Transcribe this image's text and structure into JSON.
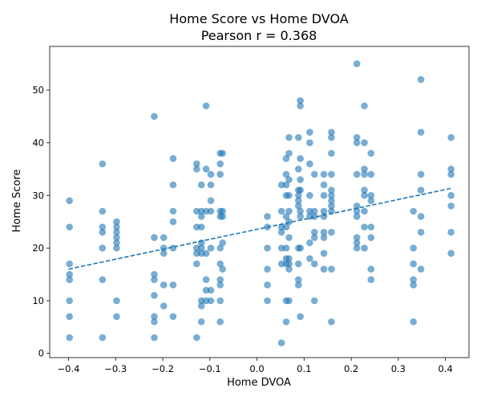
{
  "chart_data": {
    "type": "scatter",
    "title": "Home Score vs Home DVOA",
    "subtitle": "Pearson r = 0.368",
    "xlabel": "Home DVOA",
    "ylabel": "Home Score",
    "xlim": [
      -0.44,
      0.45
    ],
    "ylim": [
      -0.8,
      58.3
    ],
    "xticks": [
      -0.4,
      -0.3,
      -0.2,
      -0.1,
      0.0,
      0.1,
      0.2,
      0.3,
      0.4
    ],
    "xtick_labels": [
      "−0.4",
      "−0.3",
      "−0.2",
      "−0.1",
      "0.0",
      "0.1",
      "0.2",
      "0.3",
      "0.4"
    ],
    "yticks": [
      0,
      10,
      20,
      30,
      40,
      50
    ],
    "ytick_labels": [
      "0",
      "10",
      "20",
      "30",
      "40",
      "50"
    ],
    "grid": false,
    "point_color": "#1f77b4",
    "trend_color": "#1f77b4",
    "trendline": {
      "x": [
        -0.4,
        0.415
      ],
      "y": [
        16.0,
        31.4
      ],
      "style": "dashed"
    },
    "points": [
      [
        -0.398,
        29
      ],
      [
        -0.398,
        24
      ],
      [
        -0.398,
        17
      ],
      [
        -0.398,
        15
      ],
      [
        -0.398,
        14
      ],
      [
        -0.398,
        10
      ],
      [
        -0.398,
        7
      ],
      [
        -0.398,
        3
      ],
      [
        -0.328,
        36
      ],
      [
        -0.328,
        27
      ],
      [
        -0.328,
        24
      ],
      [
        -0.328,
        23
      ],
      [
        -0.328,
        20
      ],
      [
        -0.328,
        14
      ],
      [
        -0.328,
        3
      ],
      [
        -0.298,
        25
      ],
      [
        -0.298,
        24
      ],
      [
        -0.298,
        23
      ],
      [
        -0.298,
        22
      ],
      [
        -0.298,
        21
      ],
      [
        -0.298,
        20
      ],
      [
        -0.298,
        10
      ],
      [
        -0.298,
        7
      ],
      [
        -0.218,
        45
      ],
      [
        -0.218,
        22
      ],
      [
        -0.218,
        15
      ],
      [
        -0.218,
        14
      ],
      [
        -0.218,
        11
      ],
      [
        -0.218,
        7
      ],
      [
        -0.218,
        6
      ],
      [
        -0.218,
        3
      ],
      [
        -0.198,
        22
      ],
      [
        -0.198,
        20
      ],
      [
        -0.198,
        19
      ],
      [
        -0.198,
        13
      ],
      [
        -0.198,
        9
      ],
      [
        -0.178,
        37
      ],
      [
        -0.178,
        32
      ],
      [
        -0.178,
        27
      ],
      [
        -0.178,
        25
      ],
      [
        -0.178,
        20
      ],
      [
        -0.178,
        13
      ],
      [
        -0.178,
        7
      ],
      [
        -0.128,
        36
      ],
      [
        -0.128,
        35
      ],
      [
        -0.128,
        27
      ],
      [
        -0.128,
        24
      ],
      [
        -0.128,
        20
      ],
      [
        -0.128,
        19
      ],
      [
        -0.128,
        17
      ],
      [
        -0.128,
        3
      ],
      [
        -0.118,
        27
      ],
      [
        -0.118,
        26
      ],
      [
        -0.118,
        24
      ],
      [
        -0.118,
        21
      ],
      [
        -0.118,
        20
      ],
      [
        -0.118,
        19
      ],
      [
        -0.118,
        10
      ],
      [
        -0.118,
        9
      ],
      [
        -0.118,
        6
      ],
      [
        -0.118,
        32
      ],
      [
        -0.108,
        47
      ],
      [
        -0.108,
        35
      ],
      [
        -0.108,
        27
      ],
      [
        -0.108,
        19
      ],
      [
        -0.108,
        14
      ],
      [
        -0.108,
        12
      ],
      [
        -0.108,
        10
      ],
      [
        -0.098,
        34
      ],
      [
        -0.098,
        32
      ],
      [
        -0.098,
        29
      ],
      [
        -0.098,
        27
      ],
      [
        -0.098,
        20
      ],
      [
        -0.098,
        12
      ],
      [
        -0.098,
        10
      ],
      [
        -0.078,
        38
      ],
      [
        -0.078,
        36
      ],
      [
        -0.078,
        34
      ],
      [
        -0.078,
        27
      ],
      [
        -0.078,
        26
      ],
      [
        -0.078,
        20
      ],
      [
        -0.078,
        17
      ],
      [
        -0.078,
        14
      ],
      [
        -0.078,
        13
      ],
      [
        -0.078,
        10
      ],
      [
        -0.078,
        6
      ],
      [
        -0.073,
        38
      ],
      [
        -0.073,
        27
      ],
      [
        -0.073,
        26
      ],
      [
        -0.073,
        21
      ],
      [
        -0.073,
        16
      ],
      [
        0.022,
        26
      ],
      [
        0.022,
        24
      ],
      [
        0.022,
        20
      ],
      [
        0.022,
        16
      ],
      [
        0.022,
        13
      ],
      [
        0.022,
        10
      ],
      [
        0.052,
        32
      ],
      [
        0.052,
        27
      ],
      [
        0.052,
        24
      ],
      [
        0.052,
        23
      ],
      [
        0.052,
        20
      ],
      [
        0.052,
        17
      ],
      [
        0.052,
        2
      ],
      [
        0.062,
        37
      ],
      [
        0.062,
        34
      ],
      [
        0.062,
        32
      ],
      [
        0.062,
        30
      ],
      [
        0.062,
        26
      ],
      [
        0.062,
        24
      ],
      [
        0.062,
        20
      ],
      [
        0.062,
        18
      ],
      [
        0.062,
        17
      ],
      [
        0.062,
        10
      ],
      [
        0.062,
        6
      ],
      [
        0.068,
        41
      ],
      [
        0.068,
        38
      ],
      [
        0.068,
        33
      ],
      [
        0.068,
        30
      ],
      [
        0.068,
        27
      ],
      [
        0.068,
        25
      ],
      [
        0.068,
        22
      ],
      [
        0.068,
        18
      ],
      [
        0.068,
        17
      ],
      [
        0.068,
        16
      ],
      [
        0.068,
        10
      ],
      [
        0.088,
        41
      ],
      [
        0.088,
        35
      ],
      [
        0.088,
        31
      ],
      [
        0.088,
        30
      ],
      [
        0.088,
        29
      ],
      [
        0.088,
        28
      ],
      [
        0.088,
        20
      ],
      [
        0.088,
        17
      ],
      [
        0.088,
        14
      ],
      [
        0.088,
        13
      ],
      [
        0.092,
        47
      ],
      [
        0.092,
        48
      ],
      [
        0.092,
        37
      ],
      [
        0.092,
        33
      ],
      [
        0.092,
        31
      ],
      [
        0.092,
        27
      ],
      [
        0.092,
        26
      ],
      [
        0.092,
        20
      ],
      [
        0.092,
        7
      ],
      [
        0.112,
        42
      ],
      [
        0.112,
        40
      ],
      [
        0.112,
        36
      ],
      [
        0.112,
        30
      ],
      [
        0.112,
        27
      ],
      [
        0.112,
        26
      ],
      [
        0.112,
        21
      ],
      [
        0.112,
        18
      ],
      [
        0.122,
        34
      ],
      [
        0.122,
        27
      ],
      [
        0.122,
        26
      ],
      [
        0.122,
        23
      ],
      [
        0.122,
        22
      ],
      [
        0.122,
        17
      ],
      [
        0.122,
        10
      ],
      [
        0.142,
        34
      ],
      [
        0.142,
        32
      ],
      [
        0.142,
        30
      ],
      [
        0.142,
        27
      ],
      [
        0.142,
        26
      ],
      [
        0.142,
        23
      ],
      [
        0.142,
        22
      ],
      [
        0.142,
        19
      ],
      [
        0.142,
        16
      ],
      [
        0.158,
        42
      ],
      [
        0.158,
        41
      ],
      [
        0.158,
        38
      ],
      [
        0.158,
        34
      ],
      [
        0.158,
        31
      ],
      [
        0.158,
        30
      ],
      [
        0.158,
        29
      ],
      [
        0.158,
        28
      ],
      [
        0.158,
        27
      ],
      [
        0.158,
        23
      ],
      [
        0.158,
        16
      ],
      [
        0.158,
        6
      ],
      [
        0.212,
        55
      ],
      [
        0.212,
        41
      ],
      [
        0.212,
        40
      ],
      [
        0.212,
        34
      ],
      [
        0.212,
        28
      ],
      [
        0.212,
        27
      ],
      [
        0.212,
        26
      ],
      [
        0.212,
        22
      ],
      [
        0.212,
        21
      ],
      [
        0.212,
        20
      ],
      [
        0.228,
        47
      ],
      [
        0.228,
        40
      ],
      [
        0.228,
        35
      ],
      [
        0.228,
        34
      ],
      [
        0.228,
        31
      ],
      [
        0.228,
        30
      ],
      [
        0.228,
        27
      ],
      [
        0.228,
        24
      ],
      [
        0.228,
        20
      ],
      [
        0.242,
        38
      ],
      [
        0.242,
        34
      ],
      [
        0.242,
        30
      ],
      [
        0.242,
        29
      ],
      [
        0.242,
        24
      ],
      [
        0.242,
        22
      ],
      [
        0.242,
        16
      ],
      [
        0.242,
        14
      ],
      [
        0.332,
        27
      ],
      [
        0.332,
        20
      ],
      [
        0.332,
        17
      ],
      [
        0.332,
        14
      ],
      [
        0.332,
        13
      ],
      [
        0.332,
        6
      ],
      [
        0.348,
        52
      ],
      [
        0.348,
        42
      ],
      [
        0.348,
        34
      ],
      [
        0.348,
        31
      ],
      [
        0.348,
        26
      ],
      [
        0.348,
        23
      ],
      [
        0.348,
        16
      ],
      [
        0.412,
        41
      ],
      [
        0.412,
        35
      ],
      [
        0.412,
        34
      ],
      [
        0.412,
        30
      ],
      [
        0.412,
        28
      ],
      [
        0.412,
        23
      ],
      [
        0.412,
        19
      ]
    ]
  }
}
